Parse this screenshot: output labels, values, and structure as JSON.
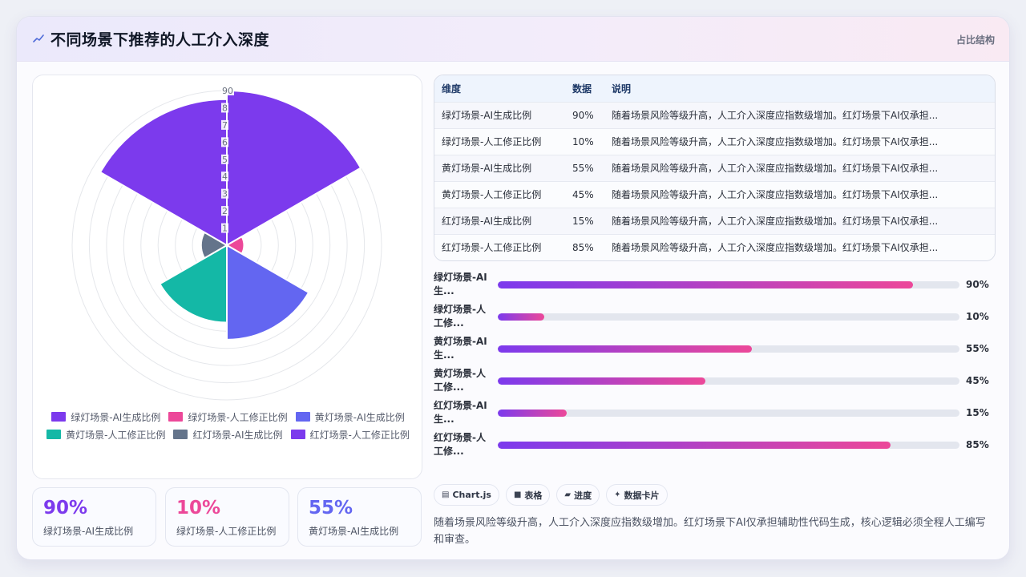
{
  "header": {
    "title": "不同场景下推荐的人工介入深度",
    "tag": "占比结构",
    "icon": "trend-line-icon"
  },
  "colors": {
    "purple": "#7c3aed",
    "pink": "#ec4899",
    "indigo": "#6366f1",
    "teal": "#14b8a6",
    "slate": "#64748b",
    "violet": "#7c3aed"
  },
  "chart_data": {
    "type": "polarArea",
    "categories": [
      "绿灯场景-AI生成比例",
      "绿灯场景-人工修正比例",
      "黄灯场景-AI生成比例",
      "黄灯场景-人工修正比例",
      "红灯场景-AI生成比例",
      "红灯场景-人工修正比例"
    ],
    "values": [
      90,
      10,
      55,
      45,
      15,
      85
    ],
    "colors": [
      "#7c3aed",
      "#ec4899",
      "#6366f1",
      "#14b8a6",
      "#64748b",
      "#7c3aed"
    ],
    "r_range": [
      0,
      90
    ],
    "ticks": [
      "1",
      "2",
      "3",
      "4",
      "5",
      "6",
      "7",
      "8",
      "90"
    ],
    "grid": true,
    "legend_position": "bottom"
  },
  "stats": [
    {
      "value": "90%",
      "label": "绿灯场景-AI生成比例",
      "color": "#7c3aed"
    },
    {
      "value": "10%",
      "label": "绿灯场景-人工修正比例",
      "color": "#ec4899"
    },
    {
      "value": "55%",
      "label": "黄灯场景-AI生成比例",
      "color": "#6366f1"
    }
  ],
  "table": {
    "headers": [
      "维度",
      "数据",
      "说明"
    ],
    "rows": [
      [
        "绿灯场景-AI生成比例",
        "90%",
        "随着场景风险等级升高，人工介入深度应指数级增加。红灯场景下AI仅承担..."
      ],
      [
        "绿灯场景-人工修正比例",
        "10%",
        "随着场景风险等级升高，人工介入深度应指数级增加。红灯场景下AI仅承担..."
      ],
      [
        "黄灯场景-AI生成比例",
        "55%",
        "随着场景风险等级升高，人工介入深度应指数级增加。红灯场景下AI仅承担..."
      ],
      [
        "黄灯场景-人工修正比例",
        "45%",
        "随着场景风险等级升高，人工介入深度应指数级增加。红灯场景下AI仅承担..."
      ],
      [
        "红灯场景-AI生成比例",
        "15%",
        "随着场景风险等级升高，人工介入深度应指数级增加。红灯场景下AI仅承担..."
      ],
      [
        "红灯场景-人工修正比例",
        "85%",
        "随着场景风险等级升高，人工介入深度应指数级增加。红灯场景下AI仅承担..."
      ]
    ]
  },
  "progress": [
    {
      "line1": "绿灯场景-AI",
      "line2": "生...",
      "percent": 90,
      "value": "90%"
    },
    {
      "line1": "绿灯场景-人",
      "line2": "工修...",
      "percent": 10,
      "value": "10%"
    },
    {
      "line1": "黄灯场景-AI",
      "line2": "生...",
      "percent": 55,
      "value": "55%"
    },
    {
      "line1": "黄灯场景-人",
      "line2": "工修...",
      "percent": 45,
      "value": "45%"
    },
    {
      "line1": "红灯场景-AI",
      "line2": "生...",
      "percent": 15,
      "value": "15%"
    },
    {
      "line1": "红灯场景-人",
      "line2": "工修...",
      "percent": 85,
      "value": "85%"
    }
  ],
  "chips": [
    {
      "icon": "▤",
      "label": "Chart.js"
    },
    {
      "icon": "■",
      "label": "表格"
    },
    {
      "icon": "▰",
      "label": "进度"
    },
    {
      "icon": "✦",
      "label": "数据卡片"
    }
  ],
  "description": "随着场景风险等级升高，人工介入深度应指数级增加。红灯场景下AI仅承担辅助性代码生成，核心逻辑必须全程人工编写和审查。"
}
